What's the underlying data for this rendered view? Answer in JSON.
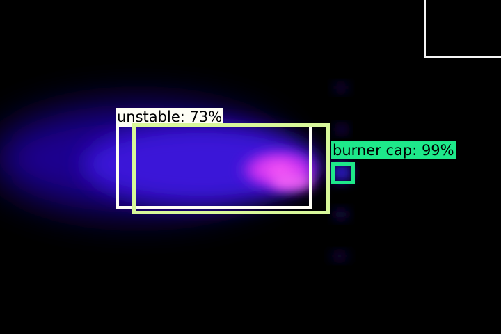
{
  "image": {
    "description_hidden": true
  },
  "detections": [
    {
      "label": "unstable: 73%",
      "color": "#fdfdf4"
    },
    {
      "label": "",
      "color": "#d8f79a"
    },
    {
      "label": "burner cap: 99%",
      "color": "#1ee88a"
    }
  ],
  "colors": {
    "background": "#000000",
    "flame_core": "#ff3cf0",
    "flame_body": "#3b12d6",
    "flame_edge": "#16007a"
  }
}
